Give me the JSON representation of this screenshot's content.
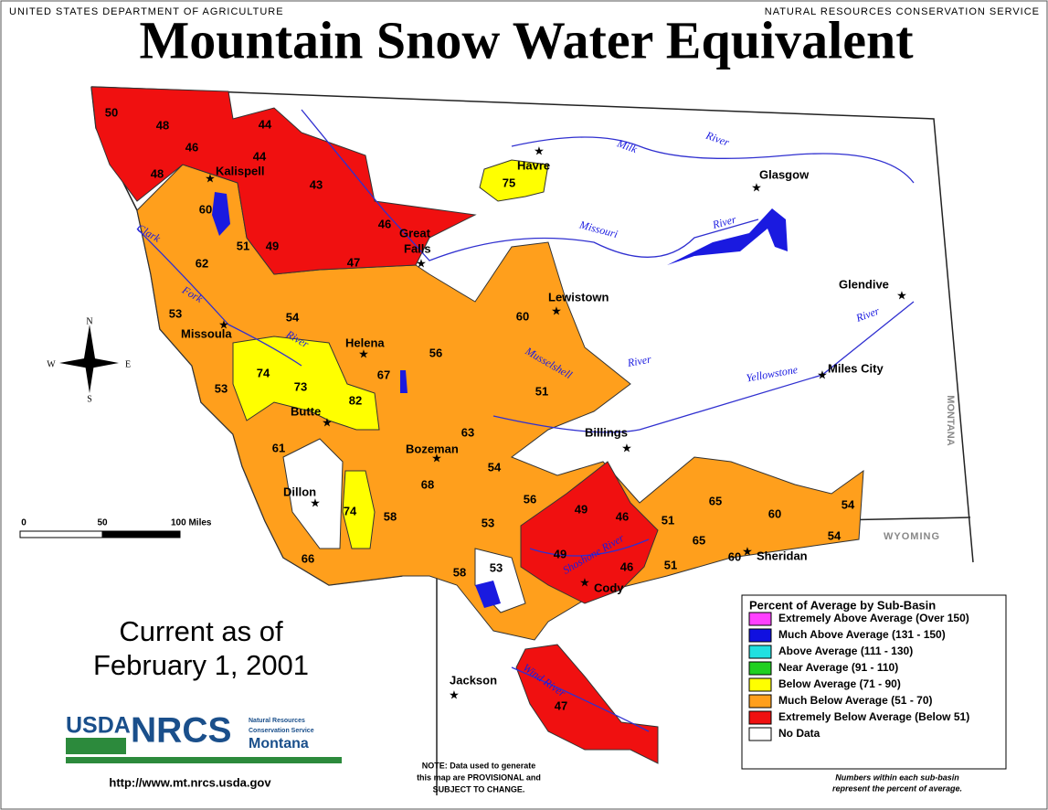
{
  "header": {
    "agency_left": "UNITED STATES DEPARTMENT OF AGRICULTURE",
    "agency_right": "NATURAL RESOURCES CONSERVATION SERVICE",
    "title": "Mountain Snow Water Equivalent"
  },
  "map": {
    "cities": [
      "Kalispell",
      "Havre",
      "Glasgow",
      "Lewistown",
      "Glendive",
      "Missoula",
      "Helena",
      "Miles City",
      "Butte",
      "Billings",
      "Bozeman",
      "Dillon",
      "Sheridan",
      "Cody",
      "Jackson"
    ],
    "great_falls": [
      "Great",
      "Falls"
    ],
    "rivers": [
      "Milk",
      "River",
      "Missouri",
      "River",
      "Clark",
      "Fork",
      "River",
      "Musselshell",
      "River",
      "Yellowstone",
      "River",
      "Shoshone River",
      "Wind River"
    ],
    "states": [
      "MONTANA",
      "WYOMING"
    ],
    "compass": {
      "n": "N",
      "e": "E",
      "s": "S",
      "w": "W"
    },
    "scale": [
      "0",
      "50",
      "100 Miles"
    ],
    "basins": [
      {
        "value": 50,
        "color": "#f01010"
      },
      {
        "value": 48,
        "color": "#f01010"
      },
      {
        "value": 46,
        "color": "#f01010"
      },
      {
        "value": 48,
        "color": "#f01010"
      },
      {
        "value": 44,
        "color": "#f01010"
      },
      {
        "value": 44,
        "color": "#f01010"
      },
      {
        "value": 43,
        "color": "#f01010"
      },
      {
        "value": 60,
        "color": "#ff9f1c"
      },
      {
        "value": 46,
        "color": "#f01010"
      },
      {
        "value": 51,
        "color": "#ff9f1c"
      },
      {
        "value": 49,
        "color": "#f01010"
      },
      {
        "value": 47,
        "color": "#f01010"
      },
      {
        "value": 62,
        "color": "#ff9f1c"
      },
      {
        "value": 53,
        "color": "#ff9f1c"
      },
      {
        "value": 54,
        "color": "#ff9f1c"
      },
      {
        "value": 74,
        "color": "#ffff00"
      },
      {
        "value": 73,
        "color": "#ffff00"
      },
      {
        "value": 82,
        "color": "#ffff00"
      },
      {
        "value": 53,
        "color": "#ff9f1c"
      },
      {
        "value": 67,
        "color": "#ff9f1c"
      },
      {
        "value": 56,
        "color": "#ff9f1c"
      },
      {
        "value": 60,
        "color": "#ff9f1c"
      },
      {
        "value": 51,
        "color": "#ff9f1c"
      },
      {
        "value": 61,
        "color": "#ff9f1c"
      },
      {
        "value": 63,
        "color": "#ff9f1c"
      },
      {
        "value": 54,
        "color": "#ff9f1c"
      },
      {
        "value": 68,
        "color": "#ff9f1c"
      },
      {
        "value": 58,
        "color": "#ff9f1c"
      },
      {
        "value": 74,
        "color": "#ffff00"
      },
      {
        "value": 56,
        "color": "#ff9f1c"
      },
      {
        "value": 49,
        "color": "#f01010"
      },
      {
        "value": 46,
        "color": "#f01010"
      },
      {
        "value": 53,
        "color": "#ff9f1c"
      },
      {
        "value": 51,
        "color": "#ff9f1c"
      },
      {
        "value": 65,
        "color": "#ff9f1c"
      },
      {
        "value": 60,
        "color": "#ff9f1c"
      },
      {
        "value": 54,
        "color": "#ff9f1c"
      },
      {
        "value": 54,
        "color": "#ff9f1c"
      },
      {
        "value": 65,
        "color": "#ff9f1c"
      },
      {
        "value": 60,
        "color": "#ff9f1c"
      },
      {
        "value": 51,
        "color": "#ff9f1c"
      },
      {
        "value": 49,
        "color": "#f01010"
      },
      {
        "value": 46,
        "color": "#f01010"
      },
      {
        "value": 58,
        "color": "#ff9f1c"
      },
      {
        "value": 53,
        "color": "#ff9f1c"
      },
      {
        "value": 66,
        "color": "#ff9f1c"
      },
      {
        "value": 47,
        "color": "#f01010"
      },
      {
        "value": 75,
        "color": "#ffff00"
      }
    ]
  },
  "date": [
    "Current as of",
    "February 1, 2001"
  ],
  "legend": {
    "title": "Percent of Average by Sub-Basin",
    "items": [
      {
        "label": "Extremely Above Average (Over 150)",
        "color": "#ff40ff"
      },
      {
        "label": "Much Above Average (131 - 150)",
        "color": "#1010e0"
      },
      {
        "label": "Above Average (111 - 130)",
        "color": "#20e0e0"
      },
      {
        "label": "Near Average (91 - 110)",
        "color": "#20d020"
      },
      {
        "label": "Below Average (71 - 90)",
        "color": "#ffff00"
      },
      {
        "label": "Much Below Average (51 - 70)",
        "color": "#ff9f1c"
      },
      {
        "label": "Extremely Below Average (Below 51)",
        "color": "#f01010"
      },
      {
        "label": "No Data",
        "color": "#ffffff"
      }
    ]
  },
  "logo": {
    "usda": "USDA",
    "nrcs": "NRCS",
    "agency": [
      "Natural Resources",
      "Conservation Service"
    ],
    "state": "Montana"
  },
  "url": "http://www.mt.nrcs.usda.gov",
  "note": [
    "NOTE: Data used to generate",
    "this map are PROVISIONAL and",
    "SUBJECT TO CHANGE."
  ],
  "footnote": [
    "Numbers within each sub-basin",
    "represent the percent of average."
  ]
}
